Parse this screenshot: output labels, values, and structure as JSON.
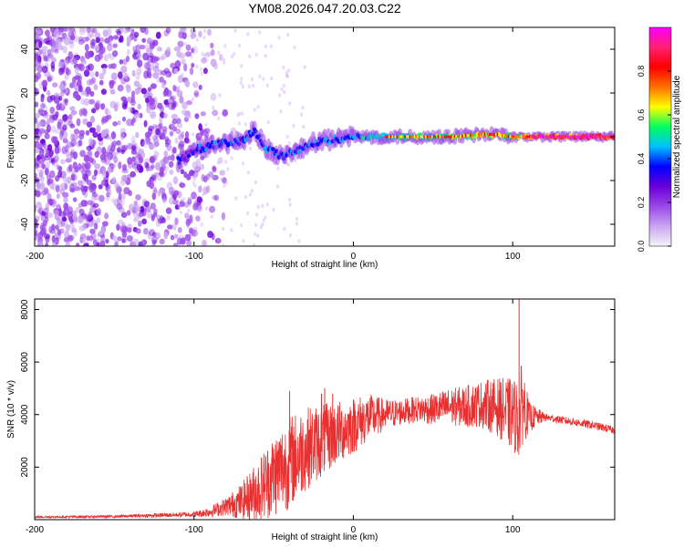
{
  "title": "YM08.2026.047.20.03.C22",
  "chart_data": [
    {
      "type": "heatmap",
      "name": "spectrogram",
      "xlabel": "Height of straight line (km)",
      "ylabel": "Frequency (Hz)",
      "xlim": [
        -200,
        164
      ],
      "ylim": [
        -50,
        50
      ],
      "xticks": [
        -200,
        -100,
        0,
        100
      ],
      "yticks": [
        -40,
        -20,
        0,
        20,
        40
      ],
      "colorbar": {
        "label": "Normalized spectral amplitude",
        "range": [
          0,
          1
        ],
        "ticks": [
          0.0,
          0.2,
          0.4,
          0.6,
          0.8
        ],
        "colors": [
          "#f4f4fb",
          "#c9a6f0",
          "#9a47e6",
          "#6a00d8",
          "#0000ff",
          "#00c0ff",
          "#00ff60",
          "#ffff00",
          "#ff7000",
          "#ff0000",
          "#ff2070",
          "#ff00ff"
        ]
      },
      "trace": {
        "x": [
          -110,
          -100,
          -90,
          -80,
          -70,
          -62,
          -55,
          -50,
          -45,
          -40,
          -35,
          -30,
          -25,
          -20,
          -10,
          0,
          20,
          40,
          60,
          80,
          90,
          100,
          110,
          130,
          150,
          164
        ],
        "center": [
          -11,
          -6,
          -4,
          -3,
          -2,
          3,
          -5,
          -7,
          -9,
          -8,
          -6,
          -5,
          -3,
          -2,
          -1,
          0,
          0,
          0,
          0,
          1,
          1,
          0,
          0,
          0,
          0,
          0
        ]
      }
    },
    {
      "type": "line",
      "name": "snr",
      "xlabel": "Height of straight line (km)",
      "ylabel": "SNR (10 * v/v)",
      "xlim": [
        -200,
        164
      ],
      "ylim": [
        0,
        8400
      ],
      "xticks": [
        -200,
        -100,
        0,
        100
      ],
      "yticks": [
        2000,
        4000,
        6000,
        8000
      ],
      "color": "#e83030",
      "envelope": {
        "x": [
          -200,
          -150,
          -100,
          -90,
          -80,
          -70,
          -60,
          -50,
          -40,
          -30,
          -20,
          -10,
          0,
          10,
          20,
          30,
          40,
          50,
          60,
          70,
          80,
          90,
          100,
          104,
          106,
          110,
          120,
          130,
          140,
          150,
          164
        ],
        "mean": [
          100,
          120,
          200,
          300,
          500,
          700,
          1100,
          1700,
          2200,
          2700,
          3000,
          3300,
          3600,
          3900,
          4000,
          4100,
          4200,
          4200,
          4300,
          4300,
          4400,
          4300,
          4000,
          3800,
          4500,
          3900,
          3900,
          3800,
          3700,
          3600,
          3400
        ],
        "amp": [
          40,
          50,
          100,
          200,
          350,
          700,
          1200,
          1600,
          1800,
          1600,
          1400,
          1200,
          1100,
          900,
          600,
          500,
          500,
          600,
          700,
          800,
          900,
          1100,
          1400,
          1500,
          1700,
          600,
          150,
          150,
          150,
          150,
          150
        ]
      },
      "spikes": [
        {
          "x": -40,
          "y": 4900
        },
        {
          "x": -20,
          "y": 4800
        },
        {
          "x": -18,
          "y": 5000
        },
        {
          "x": -13,
          "y": 4800
        },
        {
          "x": 104,
          "y": 8400
        }
      ]
    }
  ]
}
